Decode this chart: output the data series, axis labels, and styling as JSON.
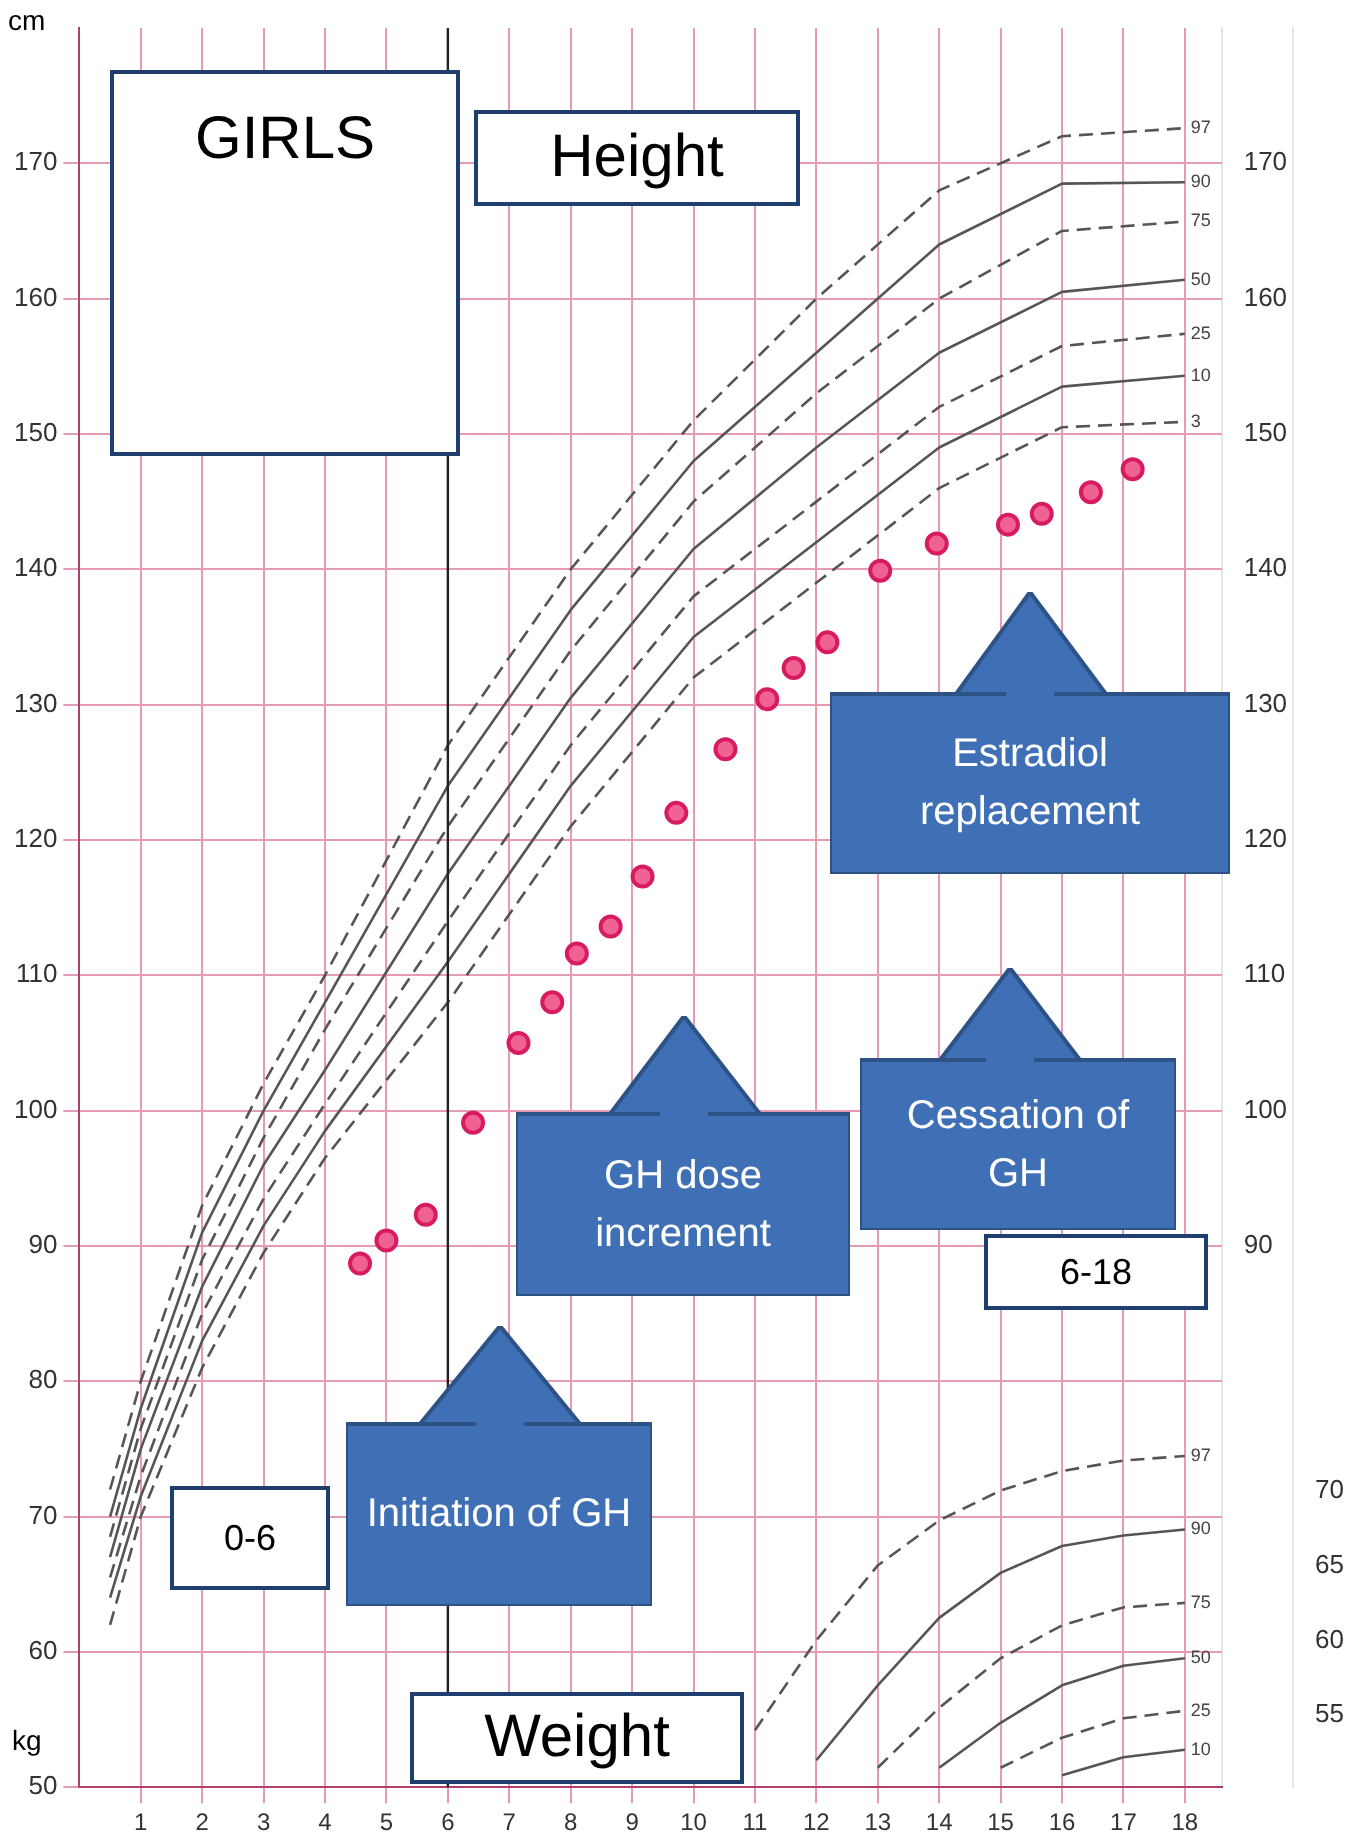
{
  "chart_data": {
    "type": "line",
    "title": "GIRLS",
    "ylabel": "cm",
    "y3label": "kg",
    "xlim": [
      0,
      18.6
    ],
    "xticks": [
      1,
      2,
      3,
      4,
      5,
      6,
      7,
      8,
      9,
      10,
      11,
      12,
      13,
      14,
      15,
      16,
      17,
      18
    ],
    "ylim": [
      50,
      180
    ],
    "yticks": [
      50,
      60,
      70,
      80,
      90,
      100,
      110,
      120,
      130,
      140,
      150,
      160,
      170
    ],
    "y2lim": [
      50,
      180
    ],
    "y2ticks": [
      90,
      100,
      110,
      120,
      130,
      140,
      150,
      160,
      170
    ],
    "y3lim": [
      50.2,
      167.6
    ],
    "y3ticks": [
      55,
      60,
      65,
      70
    ],
    "grid": true,
    "legend": false,
    "ref_lines": [
      {
        "axis": "x",
        "value": 6,
        "color": "#222222"
      }
    ],
    "annotations": [
      "Height",
      "Weight",
      "0-6",
      "6-18",
      "Initiation of GH",
      "GH dose increment",
      "Cessation of GH",
      "Estradiol replacement"
    ],
    "series": [
      {
        "name": "97",
        "color": "#555555",
        "line_style": "dashed",
        "marker": "none",
        "x": [
          0.5,
          1,
          2,
          3,
          4,
          6,
          8,
          10,
          12,
          14,
          16,
          18
        ],
        "values": [
          72,
          80,
          93,
          102,
          110,
          127,
          140,
          151,
          160,
          168,
          172,
          172.6
        ]
      },
      {
        "name": "90",
        "color": "#555555",
        "line_style": "solid",
        "marker": "none",
        "x": [
          0.5,
          1,
          2,
          3,
          4,
          6,
          8,
          10,
          12,
          14,
          16,
          18
        ],
        "values": [
          70,
          78,
          91,
          100,
          108,
          124,
          137,
          148,
          156,
          164,
          168.5,
          168.6
        ]
      },
      {
        "name": "75",
        "color": "#555555",
        "line_style": "dashed",
        "marker": "none",
        "x": [
          0.5,
          1,
          2,
          3,
          4,
          6,
          8,
          10,
          12,
          14,
          16,
          18
        ],
        "values": [
          68.5,
          76.5,
          89,
          98,
          106,
          121,
          134,
          145,
          153,
          160,
          165,
          165.7
        ]
      },
      {
        "name": "50",
        "color": "#555555",
        "line_style": "solid",
        "marker": "none",
        "x": [
          0.5,
          1,
          2,
          3,
          4,
          6,
          8,
          10,
          12,
          14,
          16,
          18
        ],
        "values": [
          67,
          75,
          87,
          96,
          103,
          117.5,
          130.5,
          141.5,
          149,
          156,
          160.5,
          161.4
        ]
      },
      {
        "name": "25",
        "color": "#555555",
        "line_style": "dashed",
        "marker": "none",
        "x": [
          0.5,
          1,
          2,
          3,
          4,
          6,
          8,
          10,
          12,
          14,
          16,
          18
        ],
        "values": [
          65.5,
          73,
          85,
          93.5,
          100.5,
          114,
          127,
          138,
          145,
          152,
          156.5,
          157.4
        ]
      },
      {
        "name": "10",
        "color": "#555555",
        "line_style": "solid",
        "marker": "none",
        "x": [
          0.5,
          1,
          2,
          3,
          4,
          6,
          8,
          10,
          12,
          14,
          16,
          18
        ],
        "values": [
          64,
          71.5,
          83,
          91.5,
          98.5,
          111,
          124,
          135,
          142,
          149,
          153.5,
          154.3
        ]
      },
      {
        "name": "3",
        "color": "#555555",
        "line_style": "dashed",
        "marker": "none",
        "x": [
          0.5,
          1,
          2,
          3,
          4,
          6,
          8,
          10,
          12,
          14,
          16,
          18
        ],
        "values": [
          62,
          70,
          81,
          89.5,
          96.5,
          108,
          121,
          132,
          139,
          146,
          150.5,
          150.9
        ]
      },
      {
        "type": "scatter",
        "color": "#d81b60",
        "marker": "circle",
        "x": [
          4.57,
          5.0,
          5.64,
          6.41,
          7.15,
          7.7,
          8.1,
          8.65,
          9.17,
          9.72,
          10.52,
          11.2,
          11.63,
          12.18,
          13.04,
          13.96,
          15.12,
          15.67,
          16.47,
          17.15
        ],
        "values": [
          88.7,
          90.4,
          92.3,
          99.1,
          105,
          108,
          111.6,
          113.6,
          117.3,
          122,
          126.7,
          130.4,
          132.7,
          134.6,
          139.9,
          141.9,
          143.3,
          144.1,
          145.7,
          147.4
        ]
      },
      {
        "name": "97",
        "axis": "y3",
        "color": "#555555",
        "line_style": "dashed",
        "marker": "none",
        "x": [
          11,
          12,
          13,
          14,
          15,
          16,
          17,
          18
        ],
        "values": [
          54,
          60,
          65,
          68,
          70,
          71.3,
          72,
          72.3
        ]
      },
      {
        "name": "90",
        "axis": "y3",
        "color": "#555555",
        "line_style": "solid",
        "marker": "none",
        "x": [
          12,
          13,
          14,
          15,
          16,
          17,
          18
        ],
        "values": [
          52,
          57,
          61.5,
          64.5,
          66.3,
          67,
          67.4
        ]
      },
      {
        "name": "75",
        "axis": "y3",
        "color": "#555555",
        "line_style": "dashed",
        "marker": "none",
        "x": [
          13,
          14,
          15,
          16,
          17,
          18
        ],
        "values": [
          51.5,
          55.5,
          58.8,
          61,
          62.2,
          62.5
        ]
      },
      {
        "name": "50",
        "axis": "y3",
        "color": "#555555",
        "line_style": "solid",
        "marker": "none",
        "x": [
          14,
          15,
          16,
          17,
          18
        ],
        "values": [
          51.5,
          54.5,
          57,
          58.3,
          58.8
        ]
      },
      {
        "name": "25",
        "axis": "y3",
        "color": "#555555",
        "line_style": "dashed",
        "marker": "none",
        "x": [
          15,
          16,
          17,
          18
        ],
        "values": [
          51.5,
          53.5,
          54.8,
          55.3
        ]
      },
      {
        "name": "10",
        "axis": "y3",
        "color": "#555555",
        "line_style": "solid",
        "marker": "none",
        "x": [
          16,
          17,
          18
        ],
        "values": [
          51,
          52.2,
          52.7
        ]
      }
    ]
  }
}
